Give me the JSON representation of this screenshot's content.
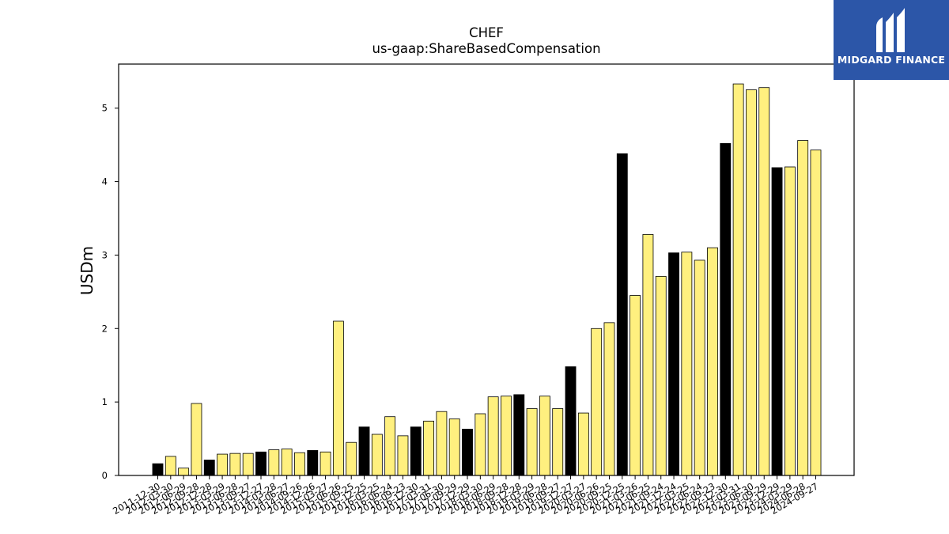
{
  "chart_data": {
    "type": "bar",
    "title": "CHEF",
    "subtitle": "us-gaap:ShareBasedCompensation",
    "xlabel": "",
    "ylabel": "USDm",
    "ylim": [
      0,
      5.6
    ],
    "yticks": [
      0,
      1,
      2,
      3,
      4,
      5
    ],
    "grid": false,
    "categories": [
      "2011-12-30",
      "2012-03-30",
      "2012-06-29",
      "2012-09-28",
      "2012-12-28",
      "2013-03-29",
      "2013-06-28",
      "2013-09-27",
      "2013-12-27",
      "2014-03-28",
      "2014-06-27",
      "2014-09-26",
      "2014-12-26",
      "2015-03-27",
      "2015-06-26",
      "2015-09-25",
      "2015-12-25",
      "2016-03-25",
      "2016-06-24",
      "2016-09-23",
      "2016-12-30",
      "2017-03-31",
      "2017-06-30",
      "2017-09-29",
      "2017-12-29",
      "2018-03-30",
      "2018-06-29",
      "2018-09-28",
      "2018-12-28",
      "2019-03-29",
      "2019-06-28",
      "2019-09-27",
      "2019-12-27",
      "2020-03-27",
      "2020-06-26",
      "2020-09-25",
      "2020-12-25",
      "2021-03-26",
      "2021-06-25",
      "2021-09-24",
      "2021-12-24",
      "2022-03-25",
      "2022-06-24",
      "2022-09-23",
      "2022-12-30",
      "2023-03-31",
      "2023-06-30",
      "2023-09-29",
      "2023-12-29",
      "2024-03-29",
      "2024-06-28",
      "2024-09-27"
    ],
    "values": [
      0.16,
      0.26,
      0.1,
      0.98,
      0.21,
      0.29,
      0.3,
      0.3,
      0.32,
      0.35,
      0.36,
      0.31,
      0.34,
      0.32,
      2.1,
      0.45,
      0.66,
      0.56,
      0.8,
      0.54,
      0.66,
      0.74,
      0.87,
      0.77,
      0.63,
      0.84,
      1.07,
      1.08,
      1.1,
      0.91,
      1.08,
      0.91,
      1.48,
      0.85,
      2.0,
      2.08,
      4.38,
      2.45,
      3.28,
      2.71,
      3.03,
      3.04,
      2.93,
      3.1,
      4.52,
      5.33,
      5.25,
      5.28,
      4.19,
      4.2,
      4.56,
      4.43
    ],
    "highlight": [
      true,
      false,
      false,
      false,
      true,
      false,
      false,
      false,
      true,
      false,
      false,
      false,
      true,
      false,
      false,
      false,
      true,
      false,
      false,
      false,
      true,
      false,
      false,
      false,
      true,
      false,
      false,
      false,
      true,
      false,
      false,
      false,
      true,
      false,
      false,
      false,
      true,
      false,
      false,
      false,
      true,
      false,
      false,
      false,
      true,
      false,
      false,
      false,
      true,
      false,
      false,
      false
    ],
    "colors": {
      "bar": "#fff07f",
      "highlight": "#000000",
      "edge": "#000000"
    }
  },
  "logo": {
    "text": "MIDGARD FINANCE",
    "background": "#2c56a8"
  }
}
